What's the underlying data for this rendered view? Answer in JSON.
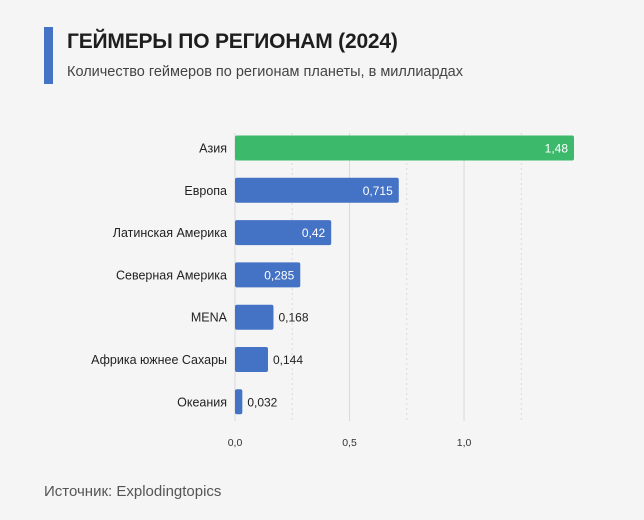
{
  "header": {
    "title": "ГЕЙМЕРЫ ПО РЕГИОНАМ (2024)",
    "subtitle": "Количество геймеров по регионам планеты, в миллиардах"
  },
  "footer": {
    "source": "Источник: Explodingtopics"
  },
  "colors": {
    "accent": "#4472c4",
    "bar": "#4472c4",
    "highlight": "#3cb96b",
    "grid": "#d9d9d9",
    "text": "#222222"
  },
  "chart_data": {
    "type": "bar",
    "orientation": "horizontal",
    "title": "ГЕЙМЕРЫ ПО РЕГИОНАМ (2024)",
    "subtitle": "Количество геймеров по регионам планеты, в миллиардах",
    "categories": [
      "Азия",
      "Европа",
      "Латинская Америка",
      "Северная Америка",
      "MENA",
      "Африка южнее Сахары",
      "Океания"
    ],
    "values": [
      1.48,
      0.715,
      0.42,
      0.285,
      0.168,
      0.144,
      0.032
    ],
    "value_labels": [
      "1,48",
      "0,715",
      "0,42",
      "0,285",
      "0,168",
      "0,144",
      "0,032"
    ],
    "highlight_index": 0,
    "x_ticks": [
      0,
      0.5,
      1.0
    ],
    "x_tick_labels": [
      "0,0",
      "0,5",
      "1,0"
    ],
    "xlim": [
      0,
      1.48
    ],
    "grid": true,
    "xlabel": "",
    "ylabel": ""
  }
}
